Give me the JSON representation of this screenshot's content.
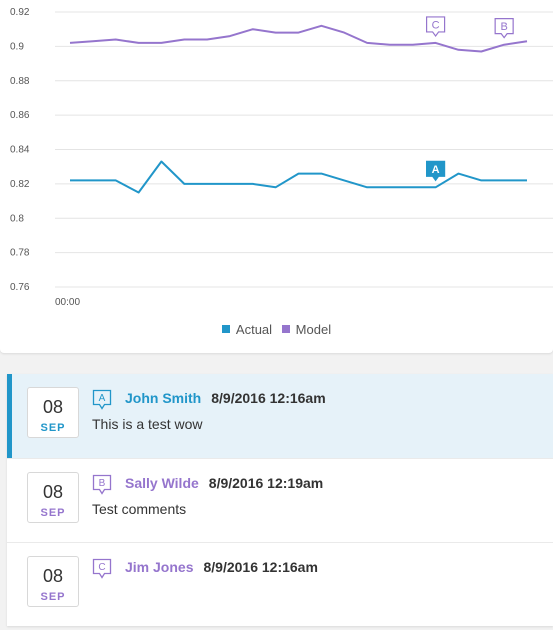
{
  "chart_data": {
    "type": "line",
    "x_tick_labels": [
      "00:00"
    ],
    "y_ticks": [
      0.76,
      0.78,
      0.8,
      0.82,
      0.84,
      0.86,
      0.88,
      0.9,
      0.92
    ],
    "ylim": [
      0.76,
      0.92
    ],
    "grid": true,
    "legend_placement": "bottom-center",
    "series": [
      {
        "name": "Actual",
        "color": "#2196c9",
        "values": [
          0.822,
          0.822,
          0.822,
          0.815,
          0.833,
          0.82,
          0.82,
          0.82,
          0.82,
          0.818,
          0.826,
          0.826,
          0.822,
          0.818,
          0.818,
          0.818,
          0.818,
          0.826,
          0.822,
          0.822,
          0.822
        ]
      },
      {
        "name": "Model",
        "color": "#9575cd",
        "values": [
          0.902,
          0.903,
          0.904,
          0.902,
          0.902,
          0.904,
          0.904,
          0.906,
          0.91,
          0.908,
          0.908,
          0.912,
          0.908,
          0.902,
          0.901,
          0.901,
          0.902,
          0.898,
          0.897,
          0.901,
          0.903
        ]
      }
    ],
    "markers": [
      {
        "label": "A",
        "series": 0,
        "index": 16
      },
      {
        "label": "C",
        "series": 1,
        "index": 16
      },
      {
        "label": "B",
        "series": 1,
        "index": 19
      }
    ]
  },
  "legend": {
    "items": [
      "Actual",
      "Model"
    ]
  },
  "comments": [
    {
      "marker": "A",
      "day": "08",
      "month": "SEP",
      "author": "John Smith",
      "timestamp": "8/9/2016 12:16am",
      "text": "This is a test wow",
      "active": true,
      "color": "#2196c9"
    },
    {
      "marker": "B",
      "day": "08",
      "month": "SEP",
      "author": "Sally Wilde",
      "timestamp": "8/9/2016 12:19am",
      "text": "Test comments",
      "active": false,
      "color": "#9575cd"
    },
    {
      "marker": "C",
      "day": "08",
      "month": "SEP",
      "author": "Jim Jones",
      "timestamp": "8/9/2016 12:16am",
      "text": "",
      "active": false,
      "color": "#9575cd"
    }
  ]
}
